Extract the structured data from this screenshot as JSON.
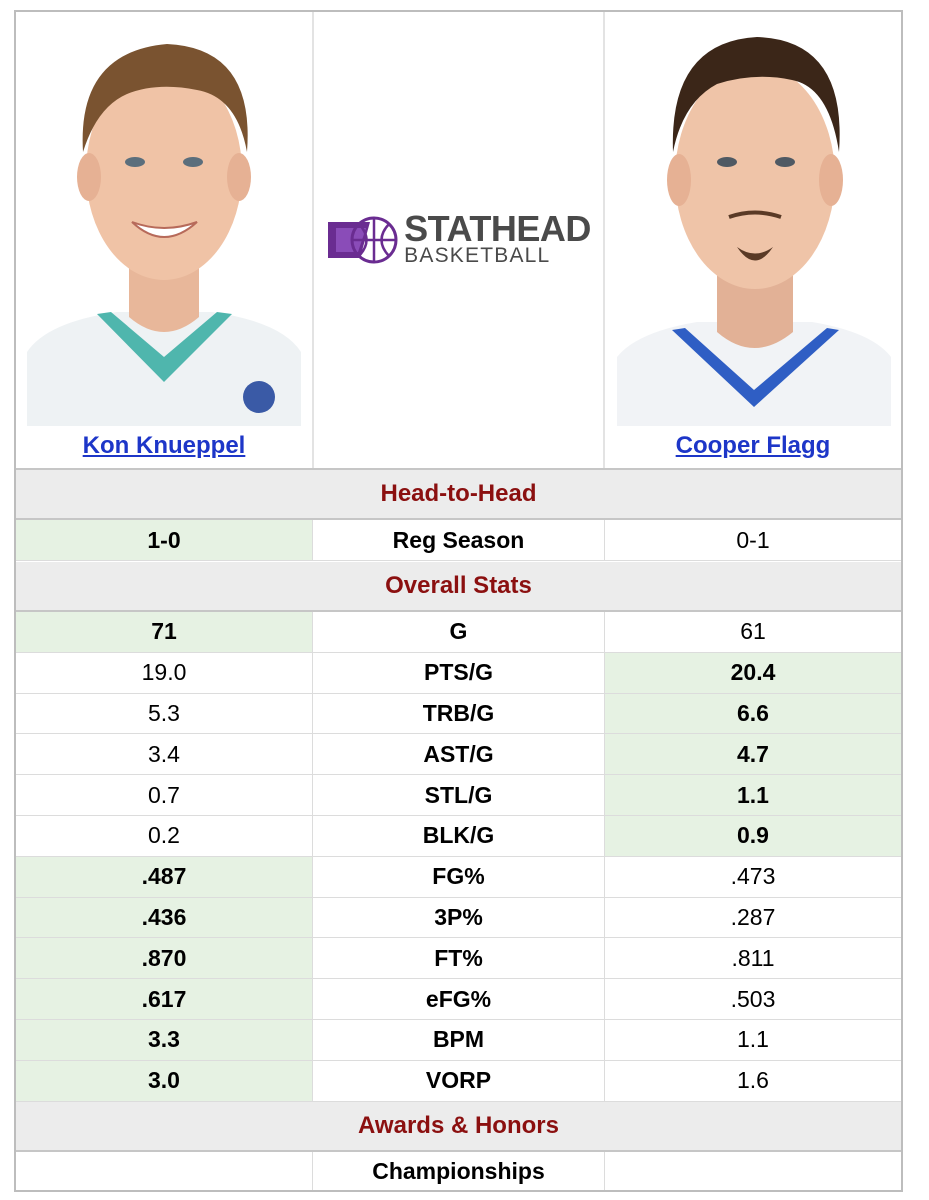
{
  "players": {
    "left": {
      "name": "Kon Knueppel"
    },
    "right": {
      "name": "Cooper Flagg"
    }
  },
  "logo": {
    "line1": "STATHEAD",
    "line2": "BASKETBALL",
    "accent": "#6a2c91"
  },
  "colors": {
    "win_cell": "#e6f2e3",
    "section_bg": "#ececec",
    "section_text": "#8b1010",
    "link": "#1d36c8"
  },
  "sections": {
    "head_to_head": "Head-to-Head",
    "overall": "Overall Stats",
    "awards": "Awards & Honors"
  },
  "head_to_head": [
    {
      "label": "Reg Season",
      "left": "1-0",
      "right": "0-1",
      "winner": "left"
    }
  ],
  "overall_stats": [
    {
      "label": "G",
      "left": "71",
      "right": "61",
      "winner": "left"
    },
    {
      "label": "PTS/G",
      "left": "19.0",
      "right": "20.4",
      "winner": "right"
    },
    {
      "label": "TRB/G",
      "left": "5.3",
      "right": "6.6",
      "winner": "right"
    },
    {
      "label": "AST/G",
      "left": "3.4",
      "right": "4.7",
      "winner": "right"
    },
    {
      "label": "STL/G",
      "left": "0.7",
      "right": "1.1",
      "winner": "right"
    },
    {
      "label": "BLK/G",
      "left": "0.2",
      "right": "0.9",
      "winner": "right"
    },
    {
      "label": "FG%",
      "left": ".487",
      "right": ".473",
      "winner": "left"
    },
    {
      "label": "3P%",
      "left": ".436",
      "right": ".287",
      "winner": "left"
    },
    {
      "label": "FT%",
      "left": ".870",
      "right": ".811",
      "winner": "left"
    },
    {
      "label": "eFG%",
      "left": ".617",
      "right": ".503",
      "winner": "left"
    },
    {
      "label": "BPM",
      "left": "3.3",
      "right": "1.1",
      "winner": "left"
    },
    {
      "label": "VORP",
      "left": "3.0",
      "right": "1.6",
      "winner": "left"
    }
  ],
  "awards": [
    {
      "label": "Championships",
      "left": "",
      "right": ""
    }
  ]
}
